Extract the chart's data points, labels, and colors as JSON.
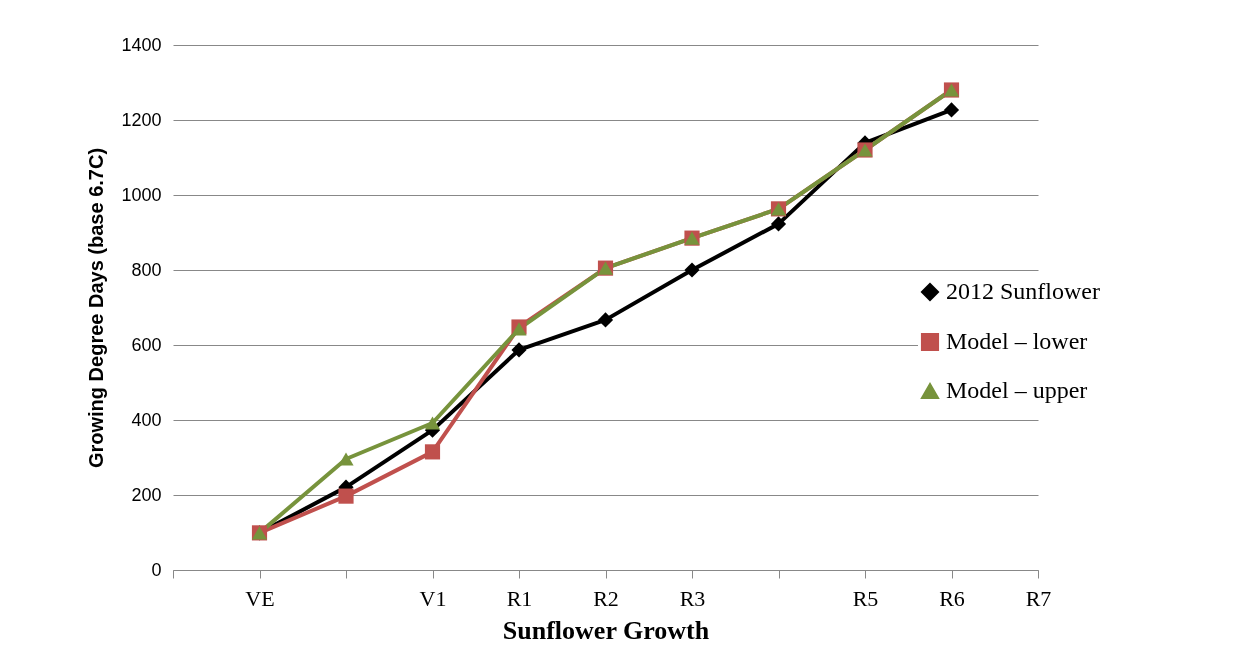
{
  "chart_data": {
    "type": "line",
    "xlabel": "Sunflower Growth",
    "ylabel": "Growing Degree Days (base 6.7C)",
    "categories": [
      null,
      "VE",
      null,
      "V1",
      "R1",
      "R2",
      "R3",
      null,
      "R5",
      "R6",
      "R7"
    ],
    "series": [
      {
        "name": "2012 Sunflower",
        "color": "#000000",
        "marker": "diamond",
        "values": [
          null,
          99,
          221,
          373,
          587,
          667,
          800,
          923,
          1139,
          1227,
          null
        ]
      },
      {
        "name": "Model – lower",
        "color": "#c0504d",
        "marker": "square",
        "values": [
          null,
          99,
          197,
          315,
          648,
          805,
          885,
          963,
          1120,
          1280,
          null
        ]
      },
      {
        "name": "Model – upper",
        "color": "#77933c",
        "marker": "triangle",
        "values": [
          null,
          99,
          296,
          392,
          643,
          805,
          885,
          963,
          1120,
          1280,
          null
        ]
      }
    ],
    "ylim": [
      0,
      1400
    ],
    "yticks": [
      0,
      200,
      400,
      600,
      800,
      1000,
      1200,
      1400
    ],
    "grid": "y",
    "legend": "right"
  }
}
